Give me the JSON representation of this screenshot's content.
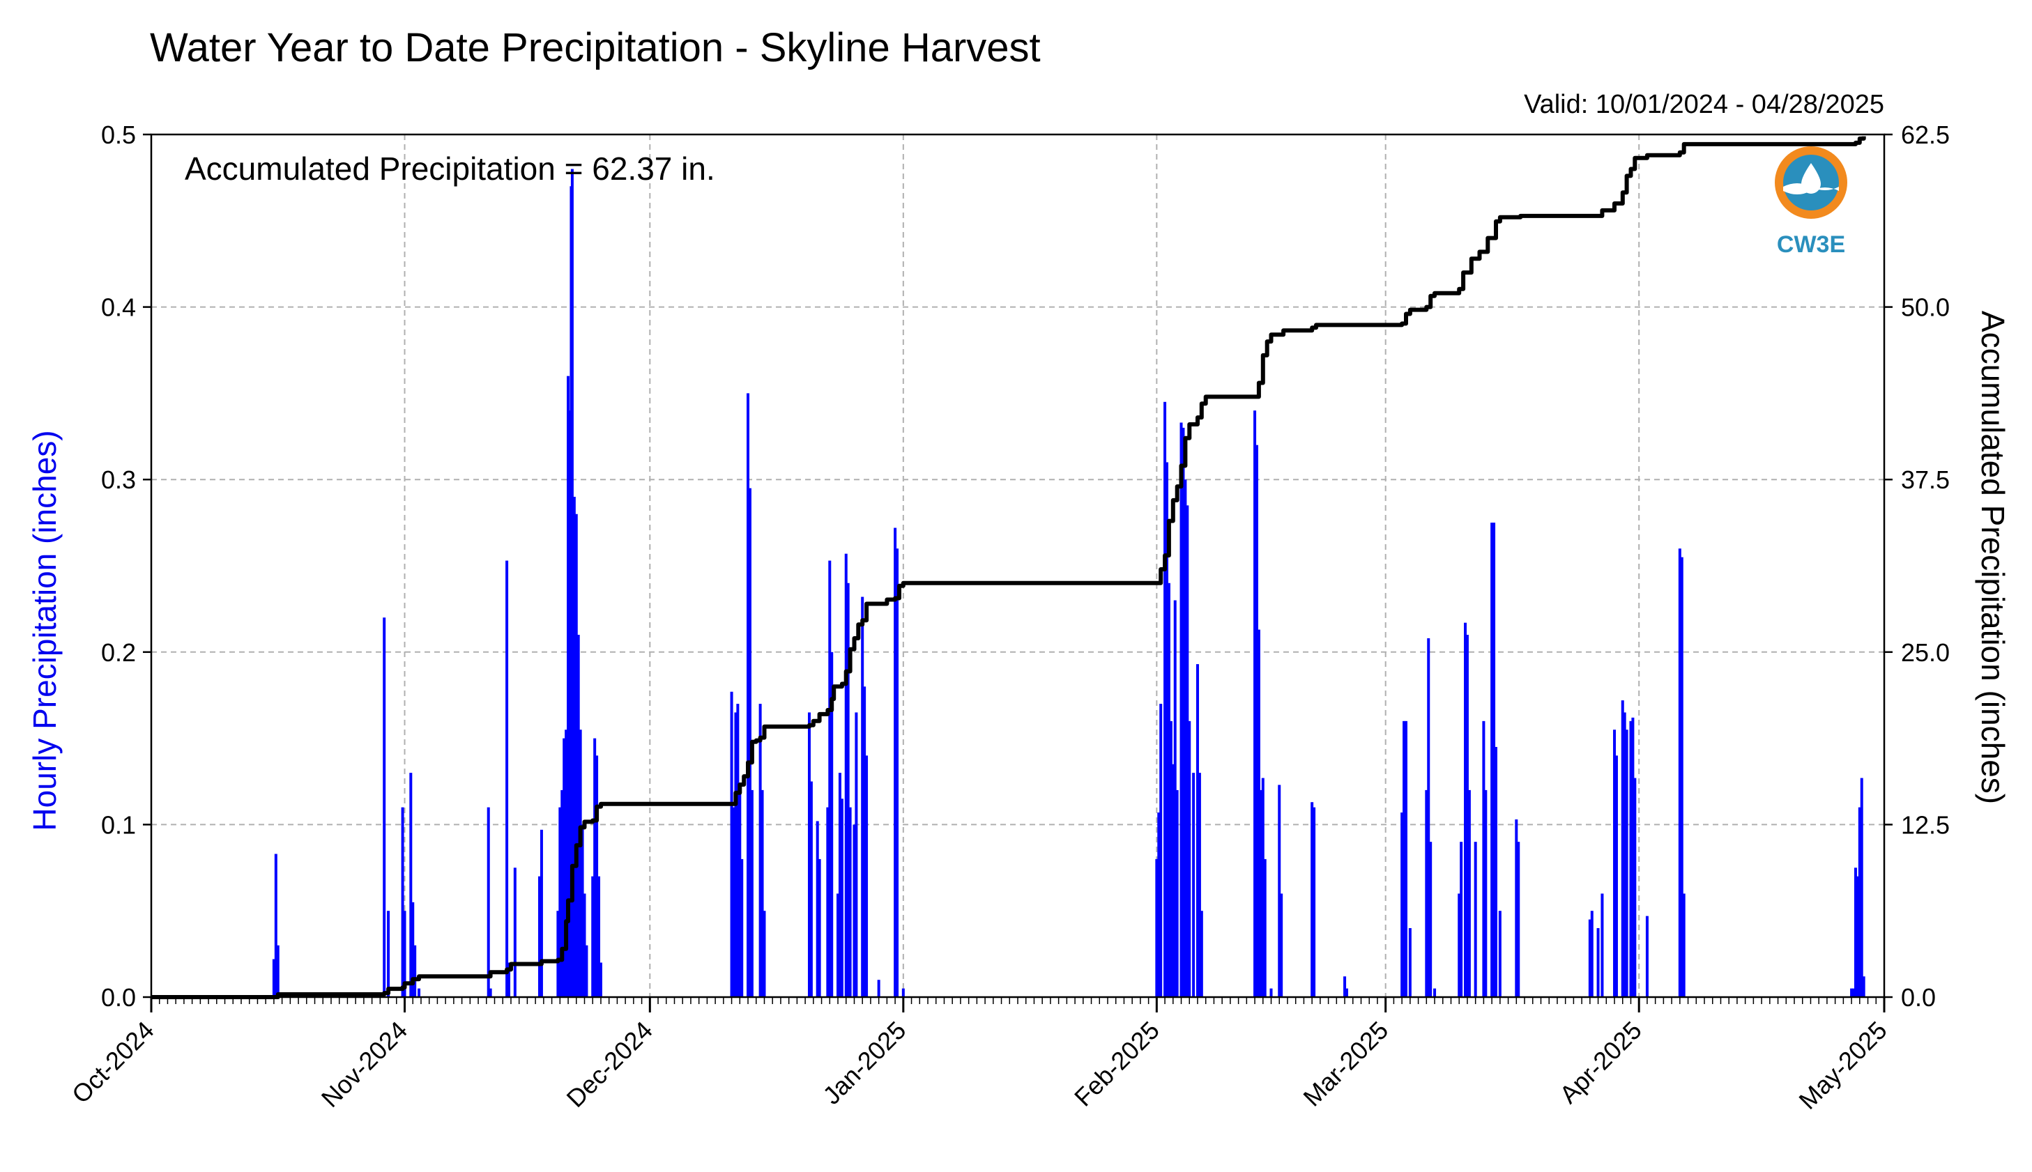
{
  "chart_data": {
    "type": "bar",
    "title": "Water Year to Date Precipitation - Skyline Harvest",
    "subtitle": "Valid: 10/01/2024 - 04/28/2025",
    "annotation": "Accumulated Precipitation = 62.37 in.",
    "ylabel": "Hourly Precipitation (inches)",
    "y2label": "Accumulated Precipitation (inches)",
    "ylim": [
      0,
      0.5
    ],
    "y2lim": [
      0,
      62.5
    ],
    "y_ticks": [
      "0.0",
      "0.1",
      "0.2",
      "0.3",
      "0.4",
      "0.5"
    ],
    "y2_ticks": [
      "0.0",
      "12.5",
      "25.0",
      "37.5",
      "50.0",
      "62.5"
    ],
    "x_range": [
      "2024-10-01",
      "2025-05-01"
    ],
    "x_ticks": [
      "Oct-2024",
      "Nov-2024",
      "Dec-2024",
      "Jan-2025",
      "Feb-2025",
      "Mar-2025",
      "Apr-2025",
      "May-2025"
    ],
    "grid": true,
    "colors": {
      "hourly": "#0000ff",
      "accumulated": "#000000",
      "grid": "#b0b0b0"
    },
    "logo": {
      "name": "cw3e-logo",
      "text": "CW3E"
    },
    "series": [
      {
        "name": "Hourly Precipitation",
        "type": "bar",
        "points": [
          [
            "2024-10-16T00",
            0.022
          ],
          [
            "2024-10-16T06",
            0.083
          ],
          [
            "2024-10-16T12",
            0.03
          ],
          [
            "2024-10-29T12",
            0.22
          ],
          [
            "2024-10-30T00",
            0.05
          ],
          [
            "2024-10-31T18",
            0.11
          ],
          [
            "2024-11-01T00",
            0.05
          ],
          [
            "2024-11-01T18",
            0.13
          ],
          [
            "2024-11-02T00",
            0.055
          ],
          [
            "2024-11-02T06",
            0.03
          ],
          [
            "2024-11-02T18",
            0.005
          ],
          [
            "2024-11-11T06",
            0.11
          ],
          [
            "2024-11-11T12",
            0.005
          ],
          [
            "2024-11-13T12",
            0.253
          ],
          [
            "2024-11-13T18",
            0.02
          ],
          [
            "2024-11-14T12",
            0.075
          ],
          [
            "2024-11-17T12",
            0.07
          ],
          [
            "2024-11-17T18",
            0.097
          ],
          [
            "2024-11-19T18",
            0.05
          ],
          [
            "2024-11-20T00",
            0.11
          ],
          [
            "2024-11-20T06",
            0.12
          ],
          [
            "2024-11-20T12",
            0.15
          ],
          [
            "2024-11-20T18",
            0.155
          ],
          [
            "2024-11-21T00",
            0.36
          ],
          [
            "2024-11-21T06",
            0.34
          ],
          [
            "2024-11-21T09",
            0.47
          ],
          [
            "2024-11-21T12",
            0.48
          ],
          [
            "2024-11-21T18",
            0.29
          ],
          [
            "2024-11-22T00",
            0.28
          ],
          [
            "2024-11-22T06",
            0.21
          ],
          [
            "2024-11-22T12",
            0.155
          ],
          [
            "2024-11-22T18",
            0.1
          ],
          [
            "2024-11-23T00",
            0.06
          ],
          [
            "2024-11-23T06",
            0.03
          ],
          [
            "2024-11-24T00",
            0.07
          ],
          [
            "2024-11-24T06",
            0.15
          ],
          [
            "2024-11-24T12",
            0.14
          ],
          [
            "2024-11-24T18",
            0.07
          ],
          [
            "2024-11-25T00",
            0.02
          ],
          [
            "2024-12-11T00",
            0.177
          ],
          [
            "2024-12-11T06",
            0.11
          ],
          [
            "2024-12-11T12",
            0.165
          ],
          [
            "2024-12-11T18",
            0.17
          ],
          [
            "2024-12-12T00",
            0.12
          ],
          [
            "2024-12-12T06",
            0.08
          ],
          [
            "2024-12-13T00",
            0.35
          ],
          [
            "2024-12-13T06",
            0.295
          ],
          [
            "2024-12-13T12",
            0.12
          ],
          [
            "2024-12-14T12",
            0.17
          ],
          [
            "2024-12-14T18",
            0.12
          ],
          [
            "2024-12-15T00",
            0.05
          ],
          [
            "2024-12-20T12",
            0.165
          ],
          [
            "2024-12-20T18",
            0.125
          ],
          [
            "2024-12-21T12",
            0.102
          ],
          [
            "2024-12-21T18",
            0.08
          ],
          [
            "2024-12-22T18",
            0.11
          ],
          [
            "2024-12-23T00",
            0.253
          ],
          [
            "2024-12-23T06",
            0.2
          ],
          [
            "2024-12-24T00",
            0.06
          ],
          [
            "2024-12-24T06",
            0.13
          ],
          [
            "2024-12-24T12",
            0.115
          ],
          [
            "2024-12-25T00",
            0.257
          ],
          [
            "2024-12-25T06",
            0.24
          ],
          [
            "2024-12-25T12",
            0.11
          ],
          [
            "2024-12-26T00",
            0.1
          ],
          [
            "2024-12-26T06",
            0.165
          ],
          [
            "2024-12-27T00",
            0.232
          ],
          [
            "2024-12-27T06",
            0.18
          ],
          [
            "2024-12-27T12",
            0.14
          ],
          [
            "2024-12-29T00",
            0.01
          ],
          [
            "2024-12-31T00",
            0.272
          ],
          [
            "2024-12-31T06",
            0.26
          ],
          [
            "2025-01-01T00",
            0.005
          ],
          [
            "2025-02-01T00",
            0.08
          ],
          [
            "2025-02-01T06",
            0.107
          ],
          [
            "2025-02-01T12",
            0.17
          ],
          [
            "2025-02-02T00",
            0.345
          ],
          [
            "2025-02-02T06",
            0.31
          ],
          [
            "2025-02-02T12",
            0.24
          ],
          [
            "2025-02-02T18",
            0.16
          ],
          [
            "2025-02-03T00",
            0.135
          ],
          [
            "2025-02-03T06",
            0.23
          ],
          [
            "2025-02-03T12",
            0.12
          ],
          [
            "2025-02-04T00",
            0.333
          ],
          [
            "2025-02-04T06",
            0.33
          ],
          [
            "2025-02-04T12",
            0.3
          ],
          [
            "2025-02-04T18",
            0.285
          ],
          [
            "2025-02-05T00",
            0.16
          ],
          [
            "2025-02-05T12",
            0.13
          ],
          [
            "2025-02-06T00",
            0.193
          ],
          [
            "2025-02-06T06",
            0.13
          ],
          [
            "2025-02-06T12",
            0.05
          ],
          [
            "2025-02-13T00",
            0.34
          ],
          [
            "2025-02-13T06",
            0.32
          ],
          [
            "2025-02-13T12",
            0.213
          ],
          [
            "2025-02-13T18",
            0.12
          ],
          [
            "2025-02-14T00",
            0.127
          ],
          [
            "2025-02-14T06",
            0.08
          ],
          [
            "2025-02-15T00",
            0.005
          ],
          [
            "2025-02-16T00",
            0.123
          ],
          [
            "2025-02-16T06",
            0.06
          ],
          [
            "2025-02-20T00",
            0.113
          ],
          [
            "2025-02-20T06",
            0.11
          ],
          [
            "2025-02-24T00",
            0.012
          ],
          [
            "2025-02-24T06",
            0.005
          ],
          [
            "2025-03-03T00",
            0.107
          ],
          [
            "2025-03-03T06",
            0.16
          ],
          [
            "2025-03-03T12",
            0.16
          ],
          [
            "2025-03-04T00",
            0.04
          ],
          [
            "2025-03-06T00",
            0.12
          ],
          [
            "2025-03-06T06",
            0.208
          ],
          [
            "2025-03-06T12",
            0.09
          ],
          [
            "2025-03-07T00",
            0.005
          ],
          [
            "2025-03-10T00",
            0.06
          ],
          [
            "2025-03-10T06",
            0.09
          ],
          [
            "2025-03-10T18",
            0.217
          ],
          [
            "2025-03-11T00",
            0.21
          ],
          [
            "2025-03-11T06",
            0.12
          ],
          [
            "2025-03-12T00",
            0.09
          ],
          [
            "2025-03-13T00",
            0.16
          ],
          [
            "2025-03-13T06",
            0.12
          ],
          [
            "2025-03-14T00",
            0.275
          ],
          [
            "2025-03-14T06",
            0.275
          ],
          [
            "2025-03-14T12",
            0.145
          ],
          [
            "2025-03-15T00",
            0.05
          ],
          [
            "2025-03-17T00",
            0.103
          ],
          [
            "2025-03-17T06",
            0.09
          ],
          [
            "2025-03-26T00",
            0.045
          ],
          [
            "2025-03-26T06",
            0.05
          ],
          [
            "2025-03-27T00",
            0.04
          ],
          [
            "2025-03-27T12",
            0.06
          ],
          [
            "2025-03-29T00",
            0.155
          ],
          [
            "2025-03-29T06",
            0.14
          ],
          [
            "2025-03-30T00",
            0.172
          ],
          [
            "2025-03-30T06",
            0.165
          ],
          [
            "2025-03-30T12",
            0.155
          ],
          [
            "2025-03-31T00",
            0.16
          ],
          [
            "2025-03-31T06",
            0.162
          ],
          [
            "2025-03-31T12",
            0.127
          ],
          [
            "2025-04-02T00",
            0.047
          ],
          [
            "2025-04-06T00",
            0.26
          ],
          [
            "2025-04-06T06",
            0.255
          ],
          [
            "2025-04-06T12",
            0.06
          ],
          [
            "2025-04-27T00",
            0.005
          ],
          [
            "2025-04-27T06",
            0.005
          ],
          [
            "2025-04-27T12",
            0.075
          ],
          [
            "2025-04-27T18",
            0.07
          ],
          [
            "2025-04-28T00",
            0.11
          ],
          [
            "2025-04-28T06",
            0.127
          ],
          [
            "2025-04-28T12",
            0.012
          ]
        ]
      },
      {
        "name": "Accumulated Precipitation",
        "type": "line",
        "axis": "right",
        "points": [
          [
            "2024-10-01T00",
            0.0
          ],
          [
            "2024-10-16T00",
            0.0
          ],
          [
            "2024-10-16T12",
            0.2
          ],
          [
            "2024-10-29T12",
            0.3
          ],
          [
            "2024-10-30T00",
            0.6
          ],
          [
            "2024-10-31T18",
            0.7
          ],
          [
            "2024-11-01T00",
            1.0
          ],
          [
            "2024-11-02T00",
            1.3
          ],
          [
            "2024-11-02T18",
            1.5
          ],
          [
            "2024-11-11T06",
            1.5
          ],
          [
            "2024-11-11T12",
            1.8
          ],
          [
            "2024-11-13T12",
            2.0
          ],
          [
            "2024-11-14T00",
            2.4
          ],
          [
            "2024-11-17T18",
            2.6
          ],
          [
            "2024-11-19T18",
            2.7
          ],
          [
            "2024-11-20T06",
            3.5
          ],
          [
            "2024-11-20T18",
            5.5
          ],
          [
            "2024-11-21T00",
            7.0
          ],
          [
            "2024-11-21T12",
            9.5
          ],
          [
            "2024-11-22T00",
            11.0
          ],
          [
            "2024-11-22T12",
            12.3
          ],
          [
            "2024-11-23T00",
            12.7
          ],
          [
            "2024-11-24T00",
            12.8
          ],
          [
            "2024-11-24T12",
            13.8
          ],
          [
            "2024-11-25T00",
            14.0
          ],
          [
            "2024-12-11T00",
            14.0
          ],
          [
            "2024-12-11T12",
            14.8
          ],
          [
            "2024-12-12T00",
            15.4
          ],
          [
            "2024-12-12T12",
            16.0
          ],
          [
            "2024-12-13T00",
            17.0
          ],
          [
            "2024-12-13T12",
            18.5
          ],
          [
            "2024-12-14T00",
            18.6
          ],
          [
            "2024-12-14T12",
            18.8
          ],
          [
            "2024-12-15T00",
            19.6
          ],
          [
            "2024-12-20T12",
            19.7
          ],
          [
            "2024-12-21T00",
            20.0
          ],
          [
            "2024-12-21T18",
            20.5
          ],
          [
            "2024-12-22T18",
            20.8
          ],
          [
            "2024-12-23T06",
            21.6
          ],
          [
            "2024-12-23T12",
            22.5
          ],
          [
            "2024-12-24T12",
            22.7
          ],
          [
            "2024-12-25T00",
            23.6
          ],
          [
            "2024-12-25T12",
            25.2
          ],
          [
            "2024-12-26T00",
            26.0
          ],
          [
            "2024-12-26T12",
            27.0
          ],
          [
            "2024-12-27T00",
            27.3
          ],
          [
            "2024-12-27T12",
            28.5
          ],
          [
            "2024-12-30T00",
            28.8
          ],
          [
            "2024-12-31T00",
            28.9
          ],
          [
            "2024-12-31T12",
            29.8
          ],
          [
            "2025-01-01T00",
            30.0
          ],
          [
            "2025-02-01T00",
            30.0
          ],
          [
            "2025-02-01T12",
            31.0
          ],
          [
            "2025-02-02T00",
            32.0
          ],
          [
            "2025-02-02T12",
            34.5
          ],
          [
            "2025-02-03T00",
            36.0
          ],
          [
            "2025-02-03T12",
            37.0
          ],
          [
            "2025-02-04T00",
            38.5
          ],
          [
            "2025-02-04T12",
            40.5
          ],
          [
            "2025-02-05T00",
            41.5
          ],
          [
            "2025-02-06T00",
            42.0
          ],
          [
            "2025-02-06T12",
            43.0
          ],
          [
            "2025-02-07T00",
            43.5
          ],
          [
            "2025-02-13T00",
            43.5
          ],
          [
            "2025-02-13T12",
            44.5
          ],
          [
            "2025-02-14T00",
            46.5
          ],
          [
            "2025-02-14T12",
            47.5
          ],
          [
            "2025-02-15T00",
            48.0
          ],
          [
            "2025-02-16T12",
            48.3
          ],
          [
            "2025-02-20T00",
            48.5
          ],
          [
            "2025-02-20T12",
            48.7
          ],
          [
            "2025-03-03T00",
            48.8
          ],
          [
            "2025-03-03T12",
            49.5
          ],
          [
            "2025-03-04T00",
            49.8
          ],
          [
            "2025-03-06T00",
            50.0
          ],
          [
            "2025-03-06T12",
            50.8
          ],
          [
            "2025-03-07T00",
            51.0
          ],
          [
            "2025-03-10T00",
            51.3
          ],
          [
            "2025-03-10T12",
            52.5
          ],
          [
            "2025-03-11T12",
            53.5
          ],
          [
            "2025-03-12T12",
            54.0
          ],
          [
            "2025-03-13T12",
            55.0
          ],
          [
            "2025-03-14T12",
            56.2
          ],
          [
            "2025-03-15T00",
            56.5
          ],
          [
            "2025-03-17T12",
            56.6
          ],
          [
            "2025-03-26T00",
            56.6
          ],
          [
            "2025-03-27T12",
            57.0
          ],
          [
            "2025-03-29T00",
            57.5
          ],
          [
            "2025-03-30T00",
            58.3
          ],
          [
            "2025-03-30T12",
            59.5
          ],
          [
            "2025-03-31T00",
            60.0
          ],
          [
            "2025-03-31T12",
            60.8
          ],
          [
            "2025-04-02T00",
            61.0
          ],
          [
            "2025-04-06T00",
            61.2
          ],
          [
            "2025-04-06T12",
            61.8
          ],
          [
            "2025-04-27T00",
            61.8
          ],
          [
            "2025-04-27T12",
            61.9
          ],
          [
            "2025-04-28T00",
            62.2
          ],
          [
            "2025-04-28T12",
            62.37
          ]
        ]
      }
    ]
  }
}
